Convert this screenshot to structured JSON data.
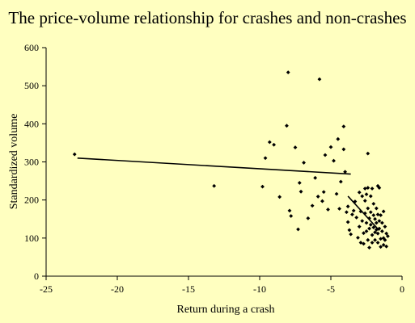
{
  "chart_data": {
    "type": "scatter",
    "title": "The price-volume relationship for crashes and non-crashes",
    "xlabel": "Return during a crash",
    "ylabel": "Standardized volume",
    "xlim": [
      -25,
      0
    ],
    "ylim": [
      0,
      600
    ],
    "x_ticks": [
      -25,
      -20,
      -15,
      -10,
      -5,
      0
    ],
    "y_ticks": [
      0,
      100,
      200,
      300,
      400,
      500,
      600
    ],
    "grid": false,
    "legend": "none",
    "colors": {
      "background": "#ffffc0",
      "marker": "#000000",
      "line": "#000000",
      "axis": "#000000"
    },
    "points": [
      [
        -23.0,
        320
      ],
      [
        -13.2,
        237
      ],
      [
        -9.8,
        235
      ],
      [
        -9.6,
        310
      ],
      [
        -9.3,
        352
      ],
      [
        -9.0,
        345
      ],
      [
        -8.6,
        208
      ],
      [
        -8.1,
        395
      ],
      [
        -7.9,
        172
      ],
      [
        -7.8,
        158
      ],
      [
        -7.5,
        338
      ],
      [
        -7.3,
        123
      ],
      [
        -7.2,
        245
      ],
      [
        -7.1,
        222
      ],
      [
        -6.9,
        298
      ],
      [
        -6.6,
        152
      ],
      [
        -8.0,
        535
      ],
      [
        -6.3,
        185
      ],
      [
        -6.1,
        258
      ],
      [
        -5.9,
        209
      ],
      [
        -5.8,
        517
      ],
      [
        -5.6,
        197
      ],
      [
        -5.5,
        221
      ],
      [
        -5.4,
        318
      ],
      [
        -5.2,
        175
      ],
      [
        -5.0,
        339
      ],
      [
        -4.8,
        303
      ],
      [
        -4.6,
        216
      ],
      [
        -4.5,
        360
      ],
      [
        -4.4,
        177
      ],
      [
        -4.3,
        248
      ],
      [
        -4.1,
        393
      ],
      [
        -4.1,
        333
      ],
      [
        -4.0,
        274
      ],
      [
        -3.9,
        168
      ],
      [
        -3.8,
        142
      ],
      [
        -3.7,
        121
      ],
      [
        -3.6,
        110
      ],
      [
        -3.5,
        162
      ],
      [
        -3.4,
        172
      ],
      [
        -3.3,
        196
      ],
      [
        -3.2,
        154
      ],
      [
        -3.1,
        101
      ],
      [
        -3.0,
        130
      ],
      [
        -2.9,
        170
      ],
      [
        -2.9,
        88
      ],
      [
        -2.8,
        210
      ],
      [
        -2.8,
        145
      ],
      [
        -2.7,
        113
      ],
      [
        -2.7,
        85
      ],
      [
        -2.6,
        230
      ],
      [
        -2.6,
        198
      ],
      [
        -2.6,
        165
      ],
      [
        -2.5,
        215
      ],
      [
        -2.5,
        140
      ],
      [
        -2.5,
        118
      ],
      [
        -2.4,
        232
      ],
      [
        -2.4,
        178
      ],
      [
        -2.4,
        95
      ],
      [
        -2.4,
        322
      ],
      [
        -2.3,
        152
      ],
      [
        -2.3,
        125
      ],
      [
        -2.3,
        75
      ],
      [
        -2.2,
        210
      ],
      [
        -2.2,
        168
      ],
      [
        -2.2,
        135
      ],
      [
        -2.1,
        108
      ],
      [
        -2.1,
        88
      ],
      [
        -2.0,
        190
      ],
      [
        -2.0,
        160
      ],
      [
        -2.0,
        128
      ],
      [
        -1.9,
        150
      ],
      [
        -1.9,
        115
      ],
      [
        -1.9,
        95
      ],
      [
        -1.8,
        178
      ],
      [
        -1.8,
        140
      ],
      [
        -1.8,
        122
      ],
      [
        -1.7,
        237
      ],
      [
        -1.7,
        162
      ],
      [
        -1.7,
        112
      ],
      [
        -1.7,
        88
      ],
      [
        -1.6,
        232
      ],
      [
        -1.6,
        145
      ],
      [
        -1.6,
        125
      ],
      [
        -1.5,
        160
      ],
      [
        -1.5,
        98
      ],
      [
        -1.4,
        140
      ],
      [
        -1.4,
        118
      ],
      [
        -1.3,
        170
      ],
      [
        -1.3,
        100
      ],
      [
        -1.3,
        82
      ],
      [
        -1.2,
        130
      ],
      [
        -1.2,
        95
      ],
      [
        -1.1,
        112
      ],
      [
        -1.1,
        78
      ],
      [
        -1.0,
        105
      ],
      [
        -3.8,
        183
      ],
      [
        -3.0,
        220
      ],
      [
        -2.1,
        230
      ],
      [
        -1.5,
        77
      ]
    ],
    "trendlines": [
      {
        "x": [
          -22.8,
          -3.6
        ],
        "y": [
          310,
          268
        ]
      },
      {
        "x": [
          -3.8,
          -1.6
        ],
        "y": [
          210,
          120
        ]
      }
    ]
  }
}
